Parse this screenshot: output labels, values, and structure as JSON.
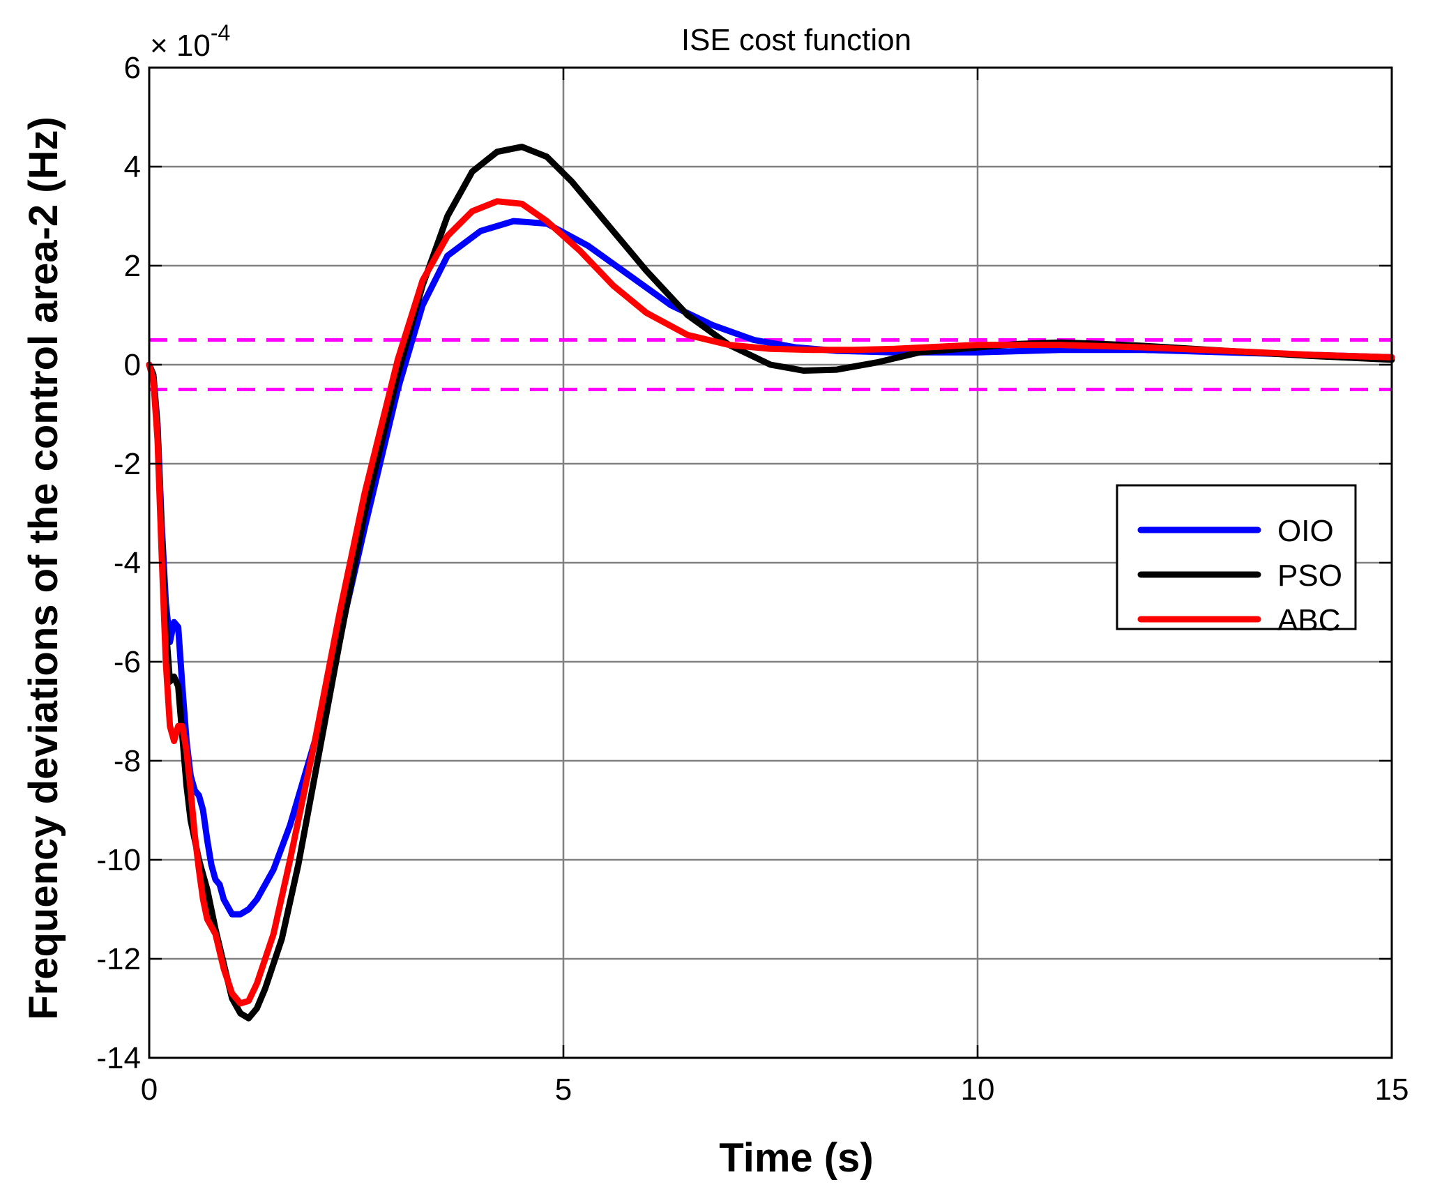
{
  "chart_data": {
    "type": "line",
    "title": "ISE cost function",
    "xlabel": "Time (s)",
    "ylabel": "Frequency deviations of the control area-2 (Hz)",
    "y_scale_label": {
      "prefix": "× 10",
      "exponent": "-4"
    },
    "xlim": [
      0,
      15
    ],
    "ylim": [
      -14,
      6
    ],
    "xticks": [
      0,
      5,
      10,
      15
    ],
    "yticks": [
      6,
      4,
      2,
      0,
      -2,
      -4,
      -6,
      -8,
      -10,
      -12,
      -14
    ],
    "grid": true,
    "legend_position": "right-middle",
    "series": [
      {
        "name": "OIO",
        "color": "#0000ff",
        "points": [
          [
            0,
            0
          ],
          [
            0.05,
            -0.2
          ],
          [
            0.1,
            -1.2
          ],
          [
            0.15,
            -3.2
          ],
          [
            0.2,
            -4.8
          ],
          [
            0.25,
            -5.6
          ],
          [
            0.3,
            -5.2
          ],
          [
            0.35,
            -5.3
          ],
          [
            0.4,
            -6.5
          ],
          [
            0.45,
            -7.6
          ],
          [
            0.5,
            -8.3
          ],
          [
            0.55,
            -8.6
          ],
          [
            0.6,
            -8.7
          ],
          [
            0.65,
            -9.0
          ],
          [
            0.7,
            -9.6
          ],
          [
            0.75,
            -10.1
          ],
          [
            0.8,
            -10.4
          ],
          [
            0.85,
            -10.5
          ],
          [
            0.9,
            -10.8
          ],
          [
            1.0,
            -11.1
          ],
          [
            1.1,
            -11.1
          ],
          [
            1.2,
            -11.0
          ],
          [
            1.3,
            -10.8
          ],
          [
            1.5,
            -10.2
          ],
          [
            1.7,
            -9.3
          ],
          [
            2.0,
            -7.6
          ],
          [
            2.3,
            -5.5
          ],
          [
            2.6,
            -3.3
          ],
          [
            3.0,
            -0.5
          ],
          [
            3.3,
            1.2
          ],
          [
            3.6,
            2.2
          ],
          [
            4.0,
            2.7
          ],
          [
            4.4,
            2.9
          ],
          [
            4.8,
            2.85
          ],
          [
            5.3,
            2.4
          ],
          [
            5.8,
            1.8
          ],
          [
            6.3,
            1.2
          ],
          [
            6.8,
            0.8
          ],
          [
            7.3,
            0.5
          ],
          [
            7.8,
            0.35
          ],
          [
            8.3,
            0.28
          ],
          [
            9.0,
            0.25
          ],
          [
            10.0,
            0.25
          ],
          [
            11.0,
            0.3
          ],
          [
            12.0,
            0.3
          ],
          [
            13.0,
            0.25
          ],
          [
            14.0,
            0.2
          ],
          [
            15.0,
            0.15
          ]
        ]
      },
      {
        "name": "PSO",
        "color": "#000000",
        "points": [
          [
            0,
            0
          ],
          [
            0.05,
            -0.2
          ],
          [
            0.1,
            -1.3
          ],
          [
            0.15,
            -3.5
          ],
          [
            0.2,
            -5.3
          ],
          [
            0.25,
            -6.4
          ],
          [
            0.3,
            -6.3
          ],
          [
            0.35,
            -6.5
          ],
          [
            0.4,
            -7.5
          ],
          [
            0.45,
            -8.5
          ],
          [
            0.5,
            -9.2
          ],
          [
            0.6,
            -10.0
          ],
          [
            0.7,
            -10.6
          ],
          [
            0.8,
            -11.4
          ],
          [
            0.9,
            -12.1
          ],
          [
            1.0,
            -12.8
          ],
          [
            1.1,
            -13.1
          ],
          [
            1.2,
            -13.2
          ],
          [
            1.3,
            -13.0
          ],
          [
            1.4,
            -12.6
          ],
          [
            1.6,
            -11.6
          ],
          [
            1.8,
            -10.1
          ],
          [
            2.0,
            -8.3
          ],
          [
            2.3,
            -5.6
          ],
          [
            2.6,
            -3.0
          ],
          [
            3.0,
            -0.2
          ],
          [
            3.3,
            1.6
          ],
          [
            3.6,
            3.0
          ],
          [
            3.9,
            3.9
          ],
          [
            4.2,
            4.3
          ],
          [
            4.5,
            4.4
          ],
          [
            4.8,
            4.2
          ],
          [
            5.1,
            3.7
          ],
          [
            5.5,
            2.9
          ],
          [
            6.0,
            1.9
          ],
          [
            6.5,
            1.0
          ],
          [
            7.0,
            0.4
          ],
          [
            7.5,
            0.0
          ],
          [
            7.9,
            -0.12
          ],
          [
            8.3,
            -0.1
          ],
          [
            8.8,
            0.05
          ],
          [
            9.3,
            0.25
          ],
          [
            10.0,
            0.35
          ],
          [
            10.5,
            0.42
          ],
          [
            11.0,
            0.45
          ],
          [
            11.5,
            0.42
          ],
          [
            12.0,
            0.38
          ],
          [
            13.0,
            0.28
          ],
          [
            14.0,
            0.18
          ],
          [
            15.0,
            0.1
          ]
        ]
      },
      {
        "name": "ABC",
        "color": "#ff0000",
        "points": [
          [
            0,
            0
          ],
          [
            0.05,
            -0.3
          ],
          [
            0.1,
            -1.5
          ],
          [
            0.15,
            -3.8
          ],
          [
            0.2,
            -6.0
          ],
          [
            0.25,
            -7.3
          ],
          [
            0.3,
            -7.6
          ],
          [
            0.35,
            -7.3
          ],
          [
            0.4,
            -7.3
          ],
          [
            0.45,
            -7.8
          ],
          [
            0.5,
            -8.6
          ],
          [
            0.55,
            -9.5
          ],
          [
            0.6,
            -10.2
          ],
          [
            0.65,
            -10.8
          ],
          [
            0.7,
            -11.2
          ],
          [
            0.8,
            -11.5
          ],
          [
            0.9,
            -12.2
          ],
          [
            1.0,
            -12.7
          ],
          [
            1.1,
            -12.9
          ],
          [
            1.2,
            -12.85
          ],
          [
            1.3,
            -12.5
          ],
          [
            1.5,
            -11.5
          ],
          [
            1.7,
            -10.0
          ],
          [
            2.0,
            -7.6
          ],
          [
            2.3,
            -5.0
          ],
          [
            2.6,
            -2.6
          ],
          [
            3.0,
            0.1
          ],
          [
            3.3,
            1.7
          ],
          [
            3.6,
            2.6
          ],
          [
            3.9,
            3.1
          ],
          [
            4.2,
            3.3
          ],
          [
            4.5,
            3.25
          ],
          [
            4.8,
            2.9
          ],
          [
            5.2,
            2.3
          ],
          [
            5.6,
            1.6
          ],
          [
            6.0,
            1.05
          ],
          [
            6.5,
            0.6
          ],
          [
            7.0,
            0.4
          ],
          [
            7.5,
            0.32
          ],
          [
            8.0,
            0.3
          ],
          [
            8.5,
            0.3
          ],
          [
            9.0,
            0.32
          ],
          [
            10.0,
            0.4
          ],
          [
            11.0,
            0.4
          ],
          [
            12.0,
            0.35
          ],
          [
            13.0,
            0.28
          ],
          [
            14.0,
            0.2
          ],
          [
            15.0,
            0.15
          ]
        ]
      },
      {
        "name": "upper band",
        "color": "#ff00ff",
        "style": "dashed",
        "show_in_legend": false,
        "points": [
          [
            0,
            0.5
          ],
          [
            15,
            0.5
          ]
        ]
      },
      {
        "name": "lower band",
        "color": "#ff00ff",
        "style": "dashed",
        "show_in_legend": false,
        "points": [
          [
            0,
            -0.5
          ],
          [
            15,
            -0.5
          ]
        ]
      }
    ]
  }
}
